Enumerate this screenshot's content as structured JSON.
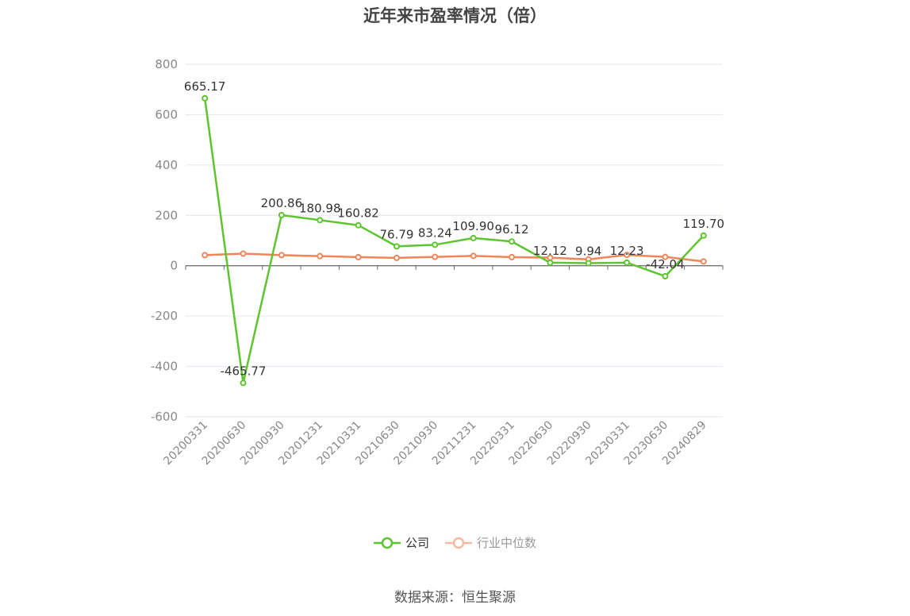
{
  "chart_data": {
    "type": "line",
    "title": "近年来市盈率情况（倍）",
    "categories": [
      "20200331",
      "20200630",
      "20200930",
      "20201231",
      "20210331",
      "20210630",
      "20210930",
      "20211231",
      "20220331",
      "20220630",
      "20220930",
      "20230331",
      "20230630",
      "20240829"
    ],
    "series": [
      {
        "name": "公司",
        "color": "#5ec42f",
        "values": [
          665.17,
          -465.77,
          200.86,
          180.98,
          160.82,
          76.79,
          83.24,
          109.9,
          96.12,
          12.12,
          9.94,
          12.23,
          -42.04,
          119.7
        ],
        "labels": [
          "665.17",
          "-465.77",
          "200.86",
          "180.98",
          "160.82",
          "76.79",
          "83.24",
          "109.90",
          "96.12",
          "12.12",
          "9.94",
          "12.23",
          "-42.04",
          "119.70"
        ]
      },
      {
        "name": "行业中位数",
        "color": "#f0855a",
        "values": [
          42,
          48,
          42,
          38,
          34,
          31,
          35,
          39,
          34,
          32,
          25,
          43,
          35,
          17
        ]
      }
    ],
    "ylim": [
      -600,
      800
    ],
    "yticks": [
      800,
      600,
      400,
      200,
      0,
      -200,
      -400,
      -600
    ],
    "grid": true,
    "legend_position": "bottom"
  },
  "legend": {
    "company": "公司",
    "industry": "行业中位数"
  },
  "source": "数据来源：恒生聚源"
}
